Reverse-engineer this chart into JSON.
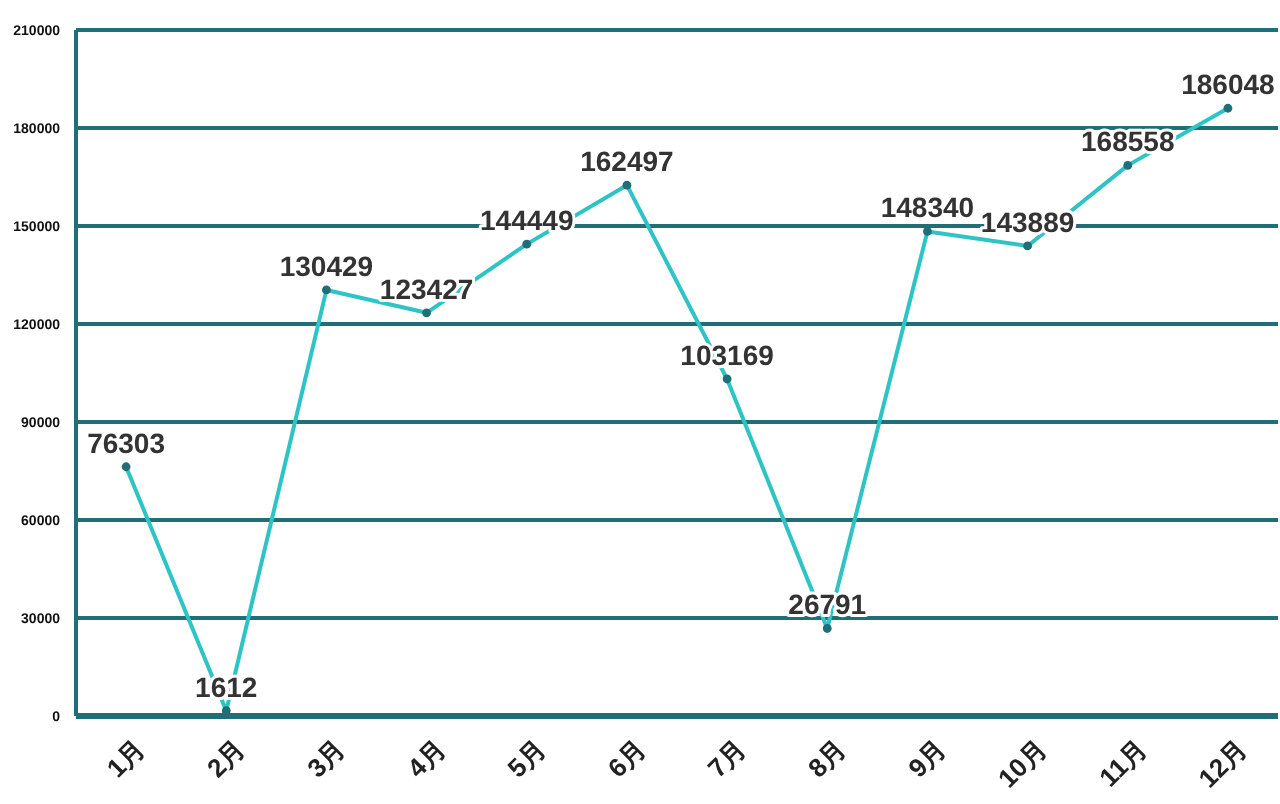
{
  "chart_data": {
    "type": "line",
    "categories": [
      "1月",
      "2月",
      "3月",
      "4月",
      "5月",
      "6月",
      "7月",
      "8月",
      "9月",
      "10月",
      "11月",
      "12月"
    ],
    "series": [
      {
        "color": "#2ec4c6",
        "values": [
          76303,
          1612,
          130429,
          123427,
          144449,
          162497,
          103169,
          26791,
          148340,
          143889,
          168558,
          186048
        ]
      }
    ],
    "ylim": [
      0,
      210000
    ],
    "yticks": [
      0,
      30000,
      60000,
      90000,
      120000,
      150000,
      180000,
      210000
    ],
    "grid": "y",
    "marker": "circle",
    "data_labels": true
  }
}
